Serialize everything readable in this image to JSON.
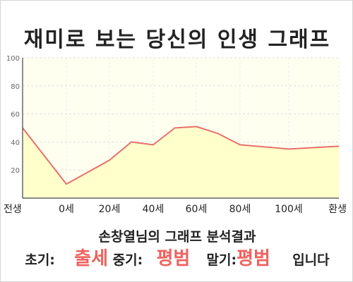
{
  "title": "재미로 보는 당신의 인생 그래프",
  "chart_data": {
    "type": "area",
    "x": [
      -1,
      0,
      20,
      30,
      40,
      50,
      60,
      70,
      80,
      100,
      120
    ],
    "x_tick_labels": [
      {
        "x": -1,
        "label": "전생"
      },
      {
        "x": 0,
        "label": "0세"
      },
      {
        "x": 20,
        "label": "20세"
      },
      {
        "x": 40,
        "label": "40세"
      },
      {
        "x": 60,
        "label": "60세"
      },
      {
        "x": 80,
        "label": "80세"
      },
      {
        "x": 100,
        "label": "100세"
      },
      {
        "x": 120,
        "label": "환생"
      }
    ],
    "series": [
      {
        "values": [
          50,
          10,
          27,
          40,
          38,
          50,
          51,
          46,
          38,
          35,
          37
        ]
      }
    ],
    "ylim": [
      0,
      100
    ],
    "y_ticks": [
      20,
      40,
      60,
      80,
      100
    ],
    "grid": true,
    "colors": {
      "line": "#e8706c",
      "fill": "#ffffcc",
      "plot_bg": "#fffff0",
      "grid": "#dddddd"
    }
  },
  "summary": "손창열님의 그래프 분석결과",
  "result": {
    "early_label": "초기:",
    "early_value": "출세",
    "mid_label": "중기:",
    "mid_value": "평범",
    "late_label": "말기:",
    "late_value": "평범",
    "ending": "입니다"
  }
}
